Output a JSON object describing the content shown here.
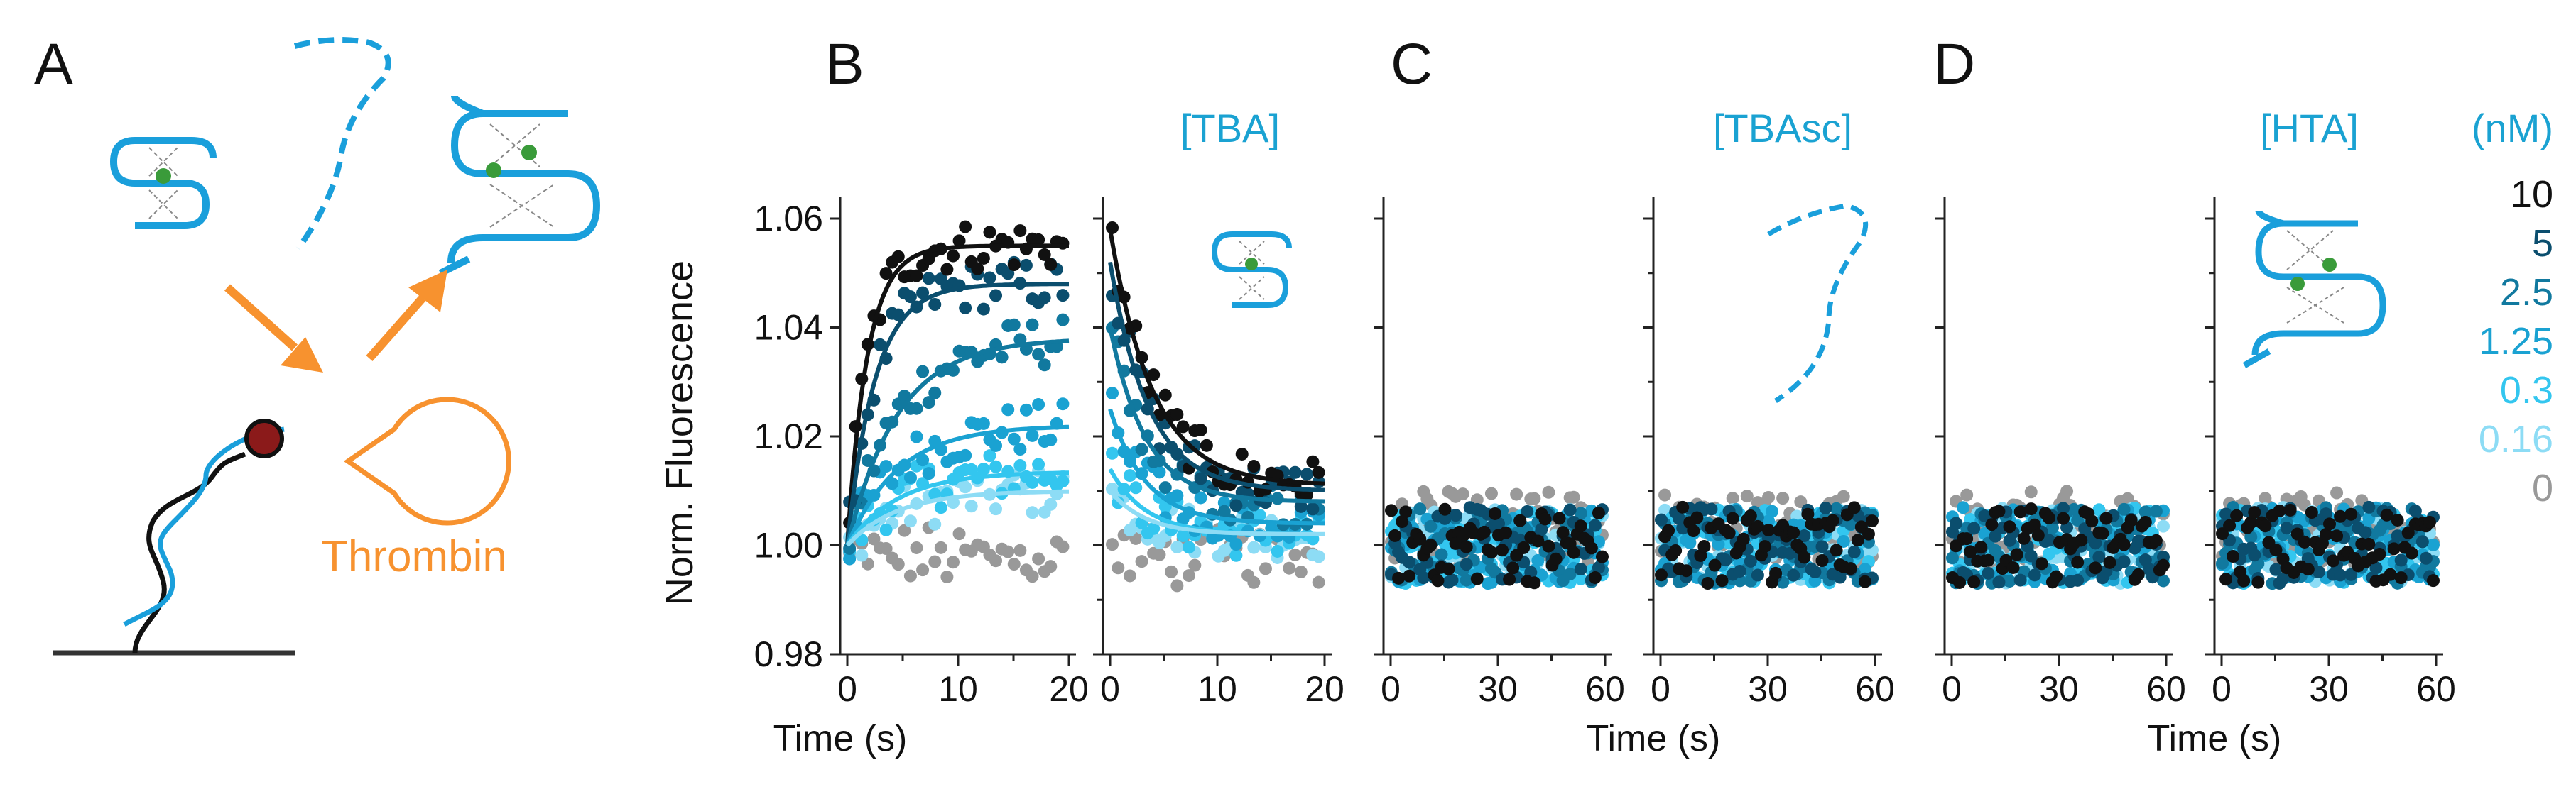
{
  "panel_letters": {
    "A": "A",
    "B": "B",
    "C": "C",
    "D": "D"
  },
  "thrombin_label": "Thrombin",
  "aptamer_labels": {
    "B": "[TBA]",
    "C": "[TBAsc]",
    "D": "[HTA]"
  },
  "legend": {
    "unit": "(nM)",
    "entries": [
      {
        "label": "10",
        "color": "#111111"
      },
      {
        "label": "5",
        "color": "#0b4e6e"
      },
      {
        "label": "2.5",
        "color": "#11799f"
      },
      {
        "label": "1.25",
        "color": "#1aa2d2"
      },
      {
        "label": "0.3",
        "color": "#33c6ef"
      },
      {
        "label": "0.16",
        "color": "#8ddcf5"
      },
      {
        "label": "0",
        "color": "#999999"
      }
    ]
  },
  "colors": {
    "dna": "#1a9fdb",
    "arrow": "#f7922f",
    "thrombin": "#f7922f",
    "quencher": "#8b1a1a",
    "fluorophore": "#3a9b3a",
    "axis": "#222222"
  },
  "chart_data": {
    "type": "scatter",
    "title": "",
    "ylabel": "Norm. Fluorescence",
    "xlabel": "Time (s)",
    "ylim": [
      0.98,
      1.06
    ],
    "yticks": [
      "0.98",
      "1.00",
      "1.02",
      "1.04",
      "1.06"
    ],
    "concentrations_nM": [
      10,
      5,
      2.5,
      1.25,
      0.3,
      0.16,
      0
    ],
    "panels": [
      {
        "id": "B-assoc",
        "kind": "association",
        "xlim": [
          0,
          20
        ],
        "xticks": [
          "0",
          "10",
          "20"
        ],
        "show_xlabel": true,
        "fits": [
          {
            "nM": 10,
            "plateau": 0.055,
            "k": 0.55
          },
          {
            "nM": 5,
            "plateau": 0.048,
            "k": 0.4
          },
          {
            "nM": 2.5,
            "plateau": 0.038,
            "k": 0.22
          },
          {
            "nM": 1.25,
            "plateau": 0.022,
            "k": 0.22
          },
          {
            "nM": 0.3,
            "plateau": 0.0135,
            "k": 0.22
          },
          {
            "nM": 0.16,
            "plateau": 0.01,
            "k": 0.22
          }
        ]
      },
      {
        "id": "B-dissoc",
        "kind": "dissociation",
        "xlim": [
          0,
          20
        ],
        "xticks": [
          "0",
          "10",
          "20"
        ],
        "show_xlabel": false,
        "fits": [
          {
            "nM": 10,
            "start": 1.058,
            "end": 1.011,
            "k": 0.25
          },
          {
            "nM": 5,
            "start": 1.052,
            "end": 1.01,
            "k": 0.28
          },
          {
            "nM": 2.5,
            "start": 1.04,
            "end": 1.008,
            "k": 0.3
          },
          {
            "nM": 1.25,
            "start": 1.025,
            "end": 1.004,
            "k": 0.3
          },
          {
            "nM": 0.3,
            "start": 1.014,
            "end": 1.002,
            "k": 0.3
          },
          {
            "nM": 0.16,
            "start": 1.01,
            "end": 1.002,
            "k": 0.3
          }
        ]
      },
      {
        "id": "C-assoc",
        "kind": "flat",
        "xlim": [
          0,
          60
        ],
        "xticks": [
          "0",
          "30",
          "60"
        ],
        "show_xlabel": false,
        "fits": []
      },
      {
        "id": "C-dissoc",
        "kind": "flat",
        "xlim": [
          0,
          60
        ],
        "xticks": [
          "0",
          "30",
          "60"
        ],
        "show_xlabel": true,
        "fits": []
      },
      {
        "id": "D-assoc",
        "kind": "flat",
        "xlim": [
          0,
          60
        ],
        "xticks": [
          "0",
          "30",
          "60"
        ],
        "show_xlabel": false,
        "fits": []
      },
      {
        "id": "D-dissoc",
        "kind": "flat",
        "xlim": [
          0,
          60
        ],
        "xticks": [
          "0",
          "30",
          "60"
        ],
        "show_xlabel": true,
        "fits": []
      }
    ]
  }
}
